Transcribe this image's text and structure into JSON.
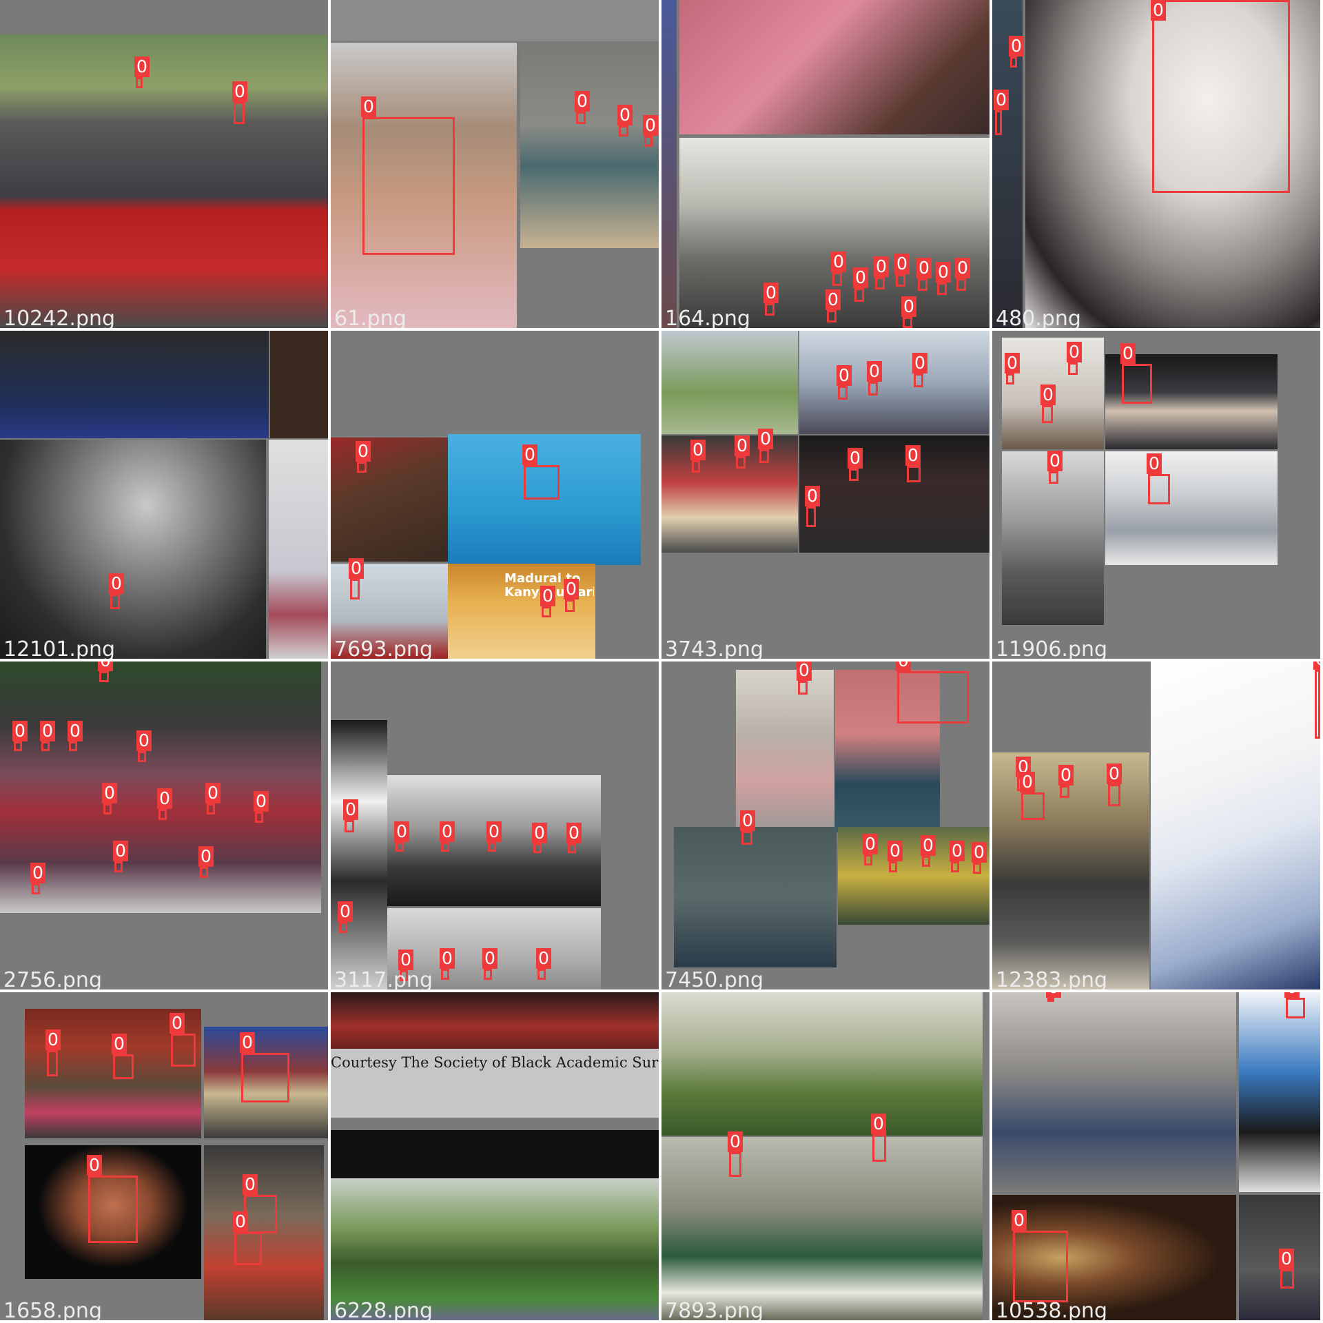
{
  "mosaic": {
    "label_color": "#ee3a3a",
    "label_text_color": "#ffffff",
    "filename_color": "#ececec",
    "background_gray": "#7a7a7a"
  },
  "tiles": [
    {
      "file": "10242.png",
      "detections": [
        {
          "label": "0"
        },
        {
          "label": "0"
        }
      ]
    },
    {
      "file": "61.png",
      "detections": [
        {
          "label": "0"
        },
        {
          "label": "0"
        },
        {
          "label": "0"
        },
        {
          "label": "0"
        }
      ]
    },
    {
      "file": "164.png",
      "detections": [
        {
          "label": "0"
        },
        {
          "label": "0"
        },
        {
          "label": "0"
        },
        {
          "label": "0"
        },
        {
          "label": "0"
        },
        {
          "label": "0"
        },
        {
          "label": "0"
        },
        {
          "label": "0"
        },
        {
          "label": "0"
        },
        {
          "label": "0"
        }
      ]
    },
    {
      "file": "480.png",
      "detections": [
        {
          "label": "0"
        },
        {
          "label": "0"
        },
        {
          "label": "0"
        }
      ]
    },
    {
      "file": "12101.png",
      "detections": [
        {
          "label": "0"
        }
      ]
    },
    {
      "file": "7693.png",
      "detections": [
        {
          "label": "0"
        },
        {
          "label": "0"
        },
        {
          "label": "0"
        },
        {
          "label": "0"
        },
        {
          "label": "0"
        }
      ],
      "text_overlays": [
        "Madurai to Kanyakumari"
      ]
    },
    {
      "file": "3743.png",
      "detections": [
        {
          "label": "0"
        },
        {
          "label": "0"
        },
        {
          "label": "0"
        },
        {
          "label": "0"
        },
        {
          "label": "0"
        },
        {
          "label": "0"
        },
        {
          "label": "0"
        },
        {
          "label": "0"
        },
        {
          "label": "0"
        }
      ]
    },
    {
      "file": "11906.png",
      "detections": [
        {
          "label": "0"
        },
        {
          "label": "0"
        },
        {
          "label": "0"
        },
        {
          "label": "0"
        },
        {
          "label": "0"
        },
        {
          "label": "0"
        }
      ]
    },
    {
      "file": "2756.png",
      "detections": [
        {
          "label": "0"
        },
        {
          "label": "0"
        },
        {
          "label": "0"
        },
        {
          "label": "0"
        },
        {
          "label": "0"
        },
        {
          "label": "0"
        },
        {
          "label": "0"
        },
        {
          "label": "0"
        },
        {
          "label": "0"
        },
        {
          "label": "0"
        },
        {
          "label": "0"
        },
        {
          "label": "0"
        }
      ]
    },
    {
      "file": "3117.png",
      "detections": [
        {
          "label": "0"
        },
        {
          "label": "0"
        },
        {
          "label": "0"
        },
        {
          "label": "0"
        },
        {
          "label": "0"
        },
        {
          "label": "0"
        },
        {
          "label": "0"
        },
        {
          "label": "0"
        },
        {
          "label": "0"
        },
        {
          "label": "0"
        },
        {
          "label": "0"
        }
      ]
    },
    {
      "file": "7450.png",
      "detections": [
        {
          "label": "0"
        },
        {
          "label": "0"
        },
        {
          "label": "0"
        },
        {
          "label": "0"
        },
        {
          "label": "0"
        },
        {
          "label": "0"
        },
        {
          "label": "0"
        },
        {
          "label": "0"
        }
      ]
    },
    {
      "file": "12383.png",
      "detections": [
        {
          "label": "0"
        },
        {
          "label": "0"
        },
        {
          "label": "0"
        },
        {
          "label": "0"
        },
        {
          "label": "0"
        }
      ]
    },
    {
      "file": "1658.png",
      "detections": [
        {
          "label": "0"
        },
        {
          "label": "0"
        },
        {
          "label": "0"
        },
        {
          "label": "0"
        },
        {
          "label": "0"
        },
        {
          "label": "0"
        },
        {
          "label": "0"
        }
      ]
    },
    {
      "file": "6228.png",
      "detections": [],
      "text_overlays": [
        "Courtesy The Society of Black Academic Surge"
      ]
    },
    {
      "file": "7893.png",
      "detections": [
        {
          "label": "0"
        },
        {
          "label": "0"
        }
      ]
    },
    {
      "file": "10538.png",
      "detections": [
        {
          "label": "0"
        },
        {
          "label": "0"
        },
        {
          "label": "0"
        },
        {
          "label": "0"
        }
      ]
    }
  ]
}
